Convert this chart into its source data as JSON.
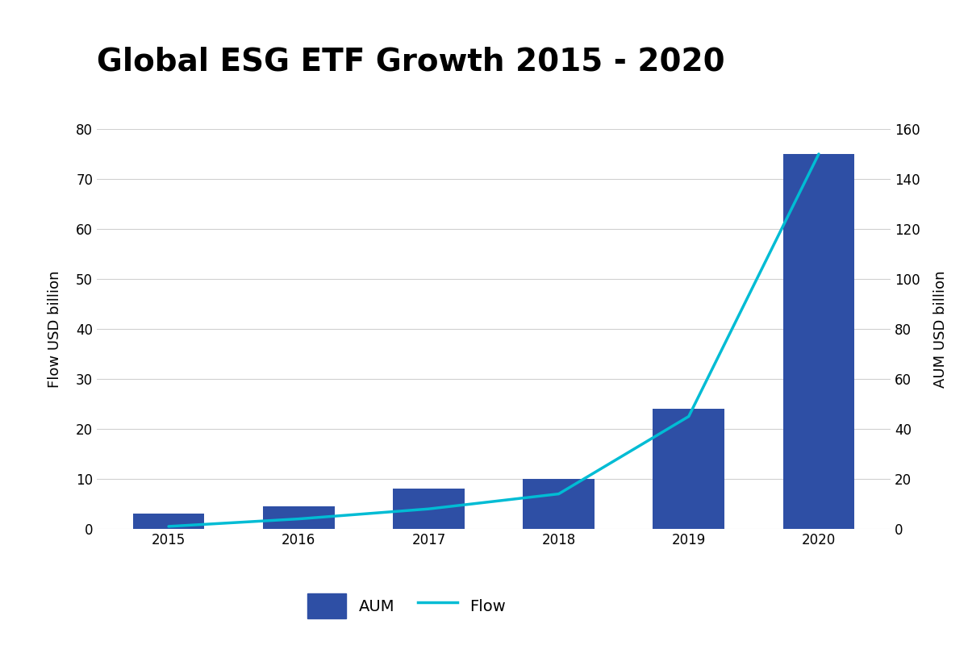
{
  "title": "Global ESG ETF Growth 2015 - 2020",
  "years": [
    2015,
    2016,
    2017,
    2018,
    2019,
    2020
  ],
  "bar_values": [
    3,
    4.5,
    8,
    10,
    24,
    75
  ],
  "line_values": [
    1,
    4,
    8,
    14,
    45,
    150
  ],
  "bar_color": "#2e4fa5",
  "line_color": "#00bcd4",
  "background_color": "#ffffff",
  "ylabel_left": "Flow USD billion",
  "ylabel_right": "AUM USD billion",
  "ylim_left": [
    0,
    80
  ],
  "ylim_right": [
    0,
    160
  ],
  "yticks_left": [
    0,
    10,
    20,
    30,
    40,
    50,
    60,
    70,
    80
  ],
  "yticks_right": [
    0,
    20,
    40,
    60,
    80,
    100,
    120,
    140,
    160
  ],
  "title_fontsize": 28,
  "axis_fontsize": 13,
  "tick_fontsize": 12,
  "legend_fontsize": 14,
  "grid_color": "#d0d0d0",
  "title_fontweight": "bold",
  "bar_width": 0.55
}
